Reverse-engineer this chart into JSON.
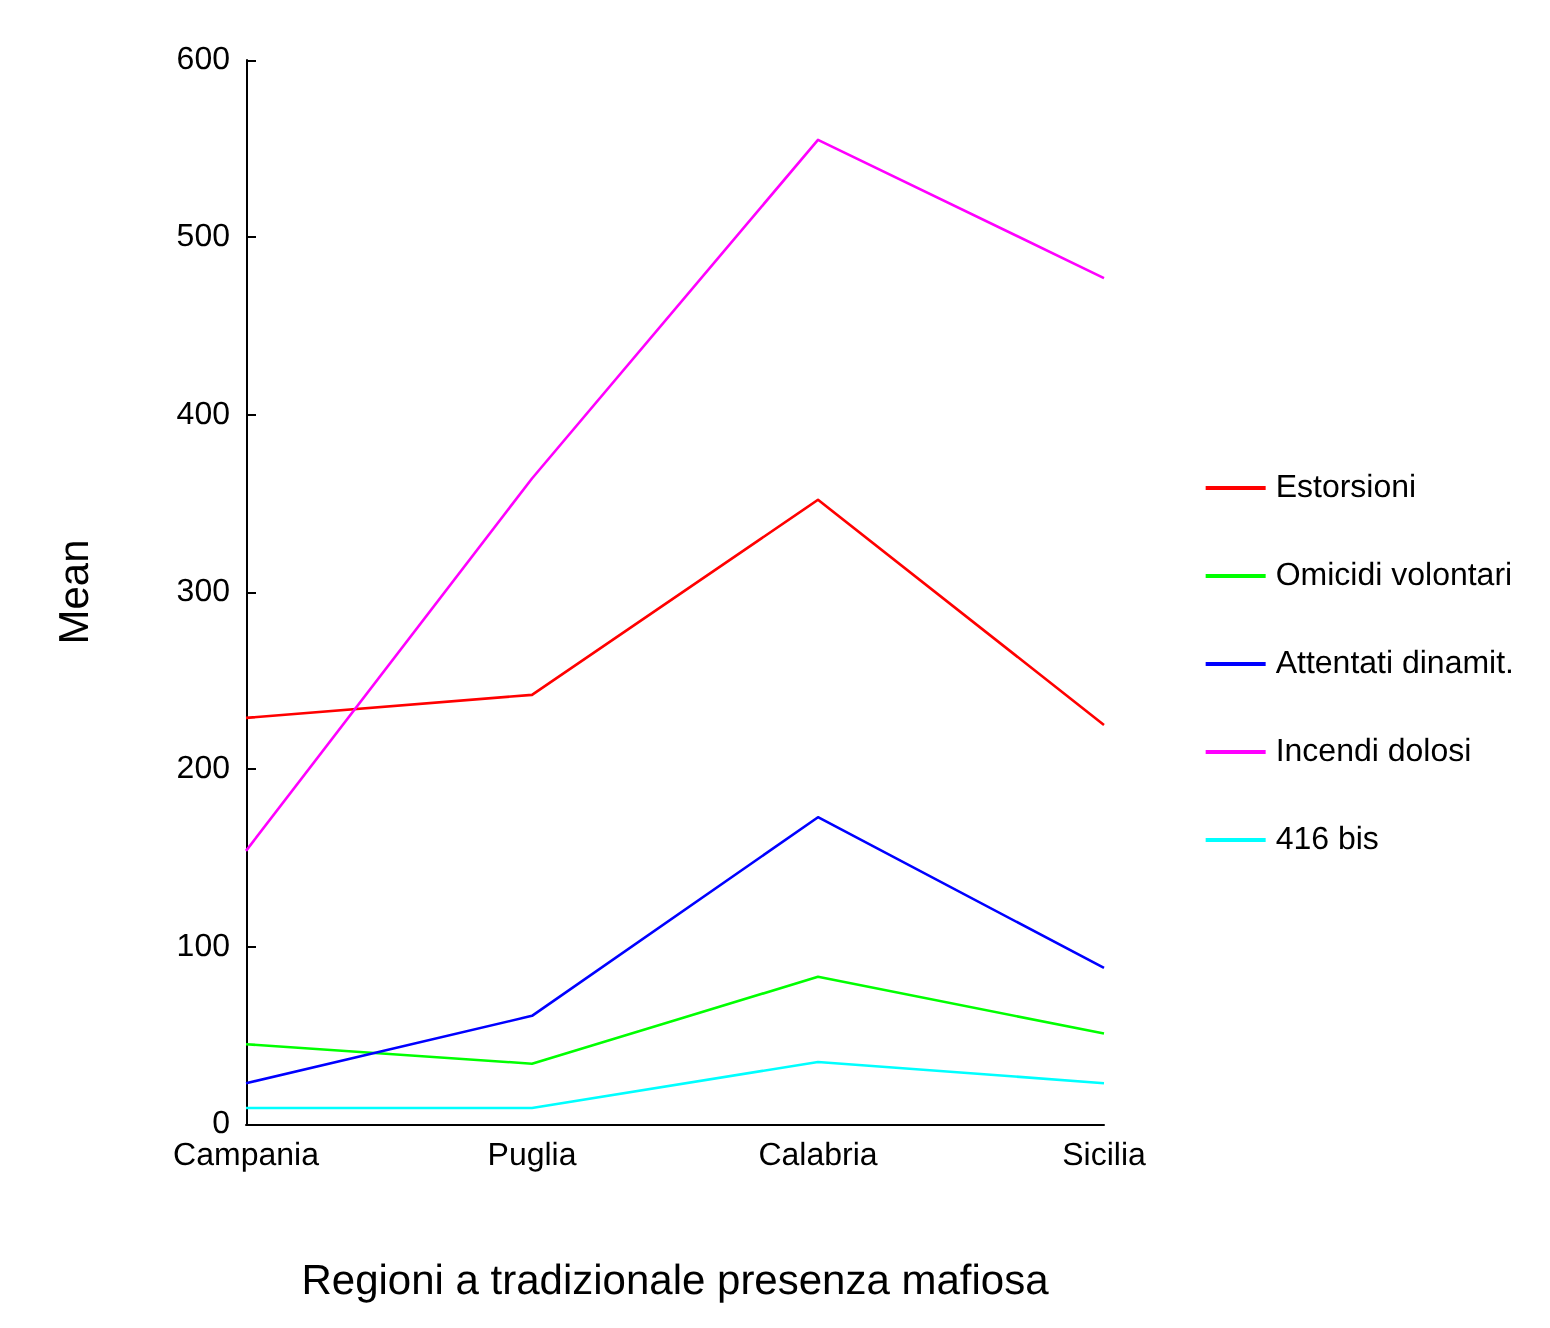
{
  "chart_data": {
    "type": "line",
    "xlabel": "Regioni a tradizionale presenza mafiosa",
    "ylabel": "Mean",
    "categories": [
      "Campania",
      "Puglia",
      "Calabria",
      "Sicilia"
    ],
    "series": [
      {
        "name": "Estorsioni",
        "color": "#ff0000",
        "values": [
          229,
          242,
          352,
          225
        ]
      },
      {
        "name": "Omicidi volontari",
        "color": "#00ff00",
        "values": [
          45,
          34,
          83,
          51
        ]
      },
      {
        "name": "Attentati dinamit.",
        "color": "#0000ff",
        "values": [
          23,
          61,
          173,
          88
        ]
      },
      {
        "name": "Incendi dolosi",
        "color": "#ff00ff",
        "values": [
          154,
          364,
          555,
          477
        ]
      },
      {
        "name": "416 bis",
        "color": "#00ffff",
        "values": [
          9,
          9,
          35,
          23
        ]
      }
    ],
    "ylim": [
      0,
      600
    ],
    "yticks": [
      0,
      100,
      200,
      300,
      400,
      500,
      600
    ],
    "legend": "right",
    "marker": "none",
    "line_style": "solid"
  }
}
